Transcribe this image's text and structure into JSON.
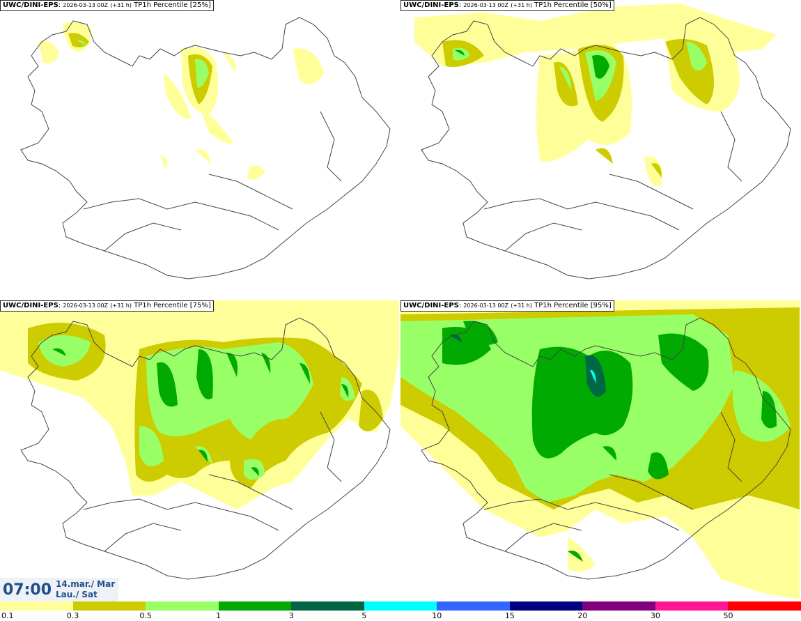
{
  "panels": [
    {
      "model": "UWC/DINI-EPS",
      "run": "2026-03-13 00Z",
      "lead": "(+31 h)",
      "field": "TP1h Percentile [25%]"
    },
    {
      "model": "UWC/DINI-EPS",
      "run": "2026-03-13 00Z",
      "lead": "(+31 h)",
      "field": "TP1h Percentile [50%]"
    },
    {
      "model": "UWC/DINI-EPS",
      "run": "2026-03-13 00Z",
      "lead": "(+31 h)",
      "field": "TP1h Percentile [75%]"
    },
    {
      "model": "UWC/DINI-EPS",
      "run": "2026-03-13 00Z",
      "lead": "(+31 h)",
      "field": "TP1h Percentile [95%]"
    }
  ],
  "valid_time": {
    "time": "07:00",
    "date_line1": "14.mar./ Mar",
    "date_line2": "Lau./ Sat"
  },
  "legend": {
    "colors": [
      "#ffff99",
      "#cccc00",
      "#99ff66",
      "#00aa00",
      "#006644",
      "#00ffff",
      "#3366ff",
      "#000080",
      "#800080",
      "#ff1493",
      "#ff0000"
    ],
    "labels": [
      "0.1",
      "0.3",
      "0.5",
      "1",
      "3",
      "5",
      "10",
      "15",
      "20",
      "30",
      "50"
    ]
  }
}
